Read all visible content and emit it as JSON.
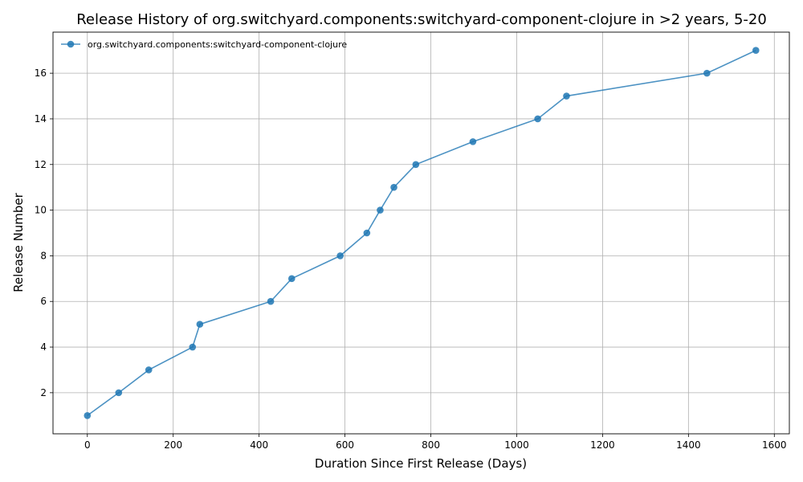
{
  "chart_data": {
    "type": "line",
    "title": "Release History of org.switchyard.components:switchyard-component-clojure in >2 years, 5-20",
    "xlabel": "Duration Since First Release (Days)",
    "ylabel": "Release Number",
    "xlim": [
      -80,
      1635
    ],
    "ylim": [
      0.2,
      17.8
    ],
    "x_ticks": [
      0,
      200,
      400,
      600,
      800,
      1000,
      1200,
      1400,
      1600
    ],
    "y_ticks": [
      2,
      4,
      6,
      8,
      10,
      12,
      14,
      16
    ],
    "grid": true,
    "legend_position": "top-left",
    "series": [
      {
        "name": "org.switchyard.components:switchyard-component-clojure",
        "color": "#1f77b4",
        "marker": "circle",
        "x": [
          0,
          73,
          143,
          245,
          262,
          427,
          476,
          589,
          651,
          682,
          714,
          765,
          898,
          1049,
          1116,
          1443,
          1557
        ],
        "y": [
          1,
          2,
          3,
          4,
          5,
          6,
          7,
          8,
          9,
          10,
          11,
          12,
          13,
          14,
          15,
          16,
          17
        ]
      }
    ]
  }
}
